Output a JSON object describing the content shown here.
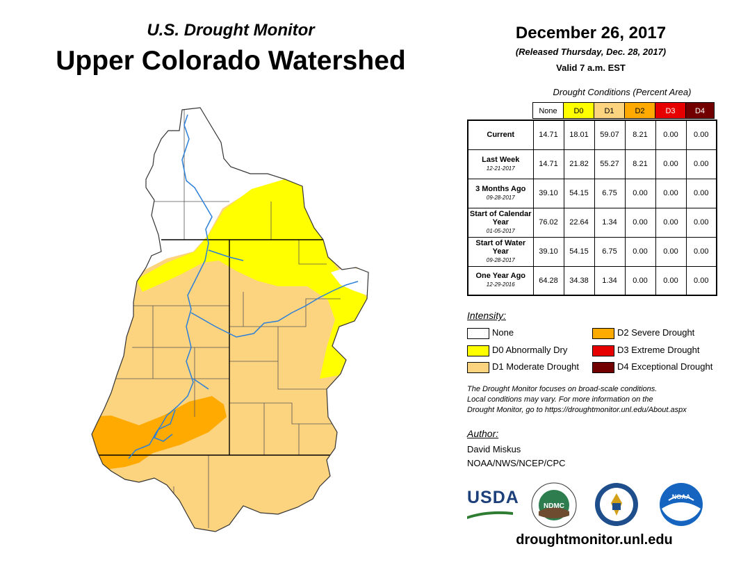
{
  "header": {
    "subtitle": "U.S. Drought Monitor",
    "title": "Upper Colorado Watershed",
    "date": "December 26, 2017",
    "released": "(Released Thursday, Dec. 28, 2017)",
    "valid": "Valid 7 a.m. EST"
  },
  "table": {
    "caption": "Drought Conditions (Percent Area)",
    "columns": [
      "None",
      "D0",
      "D1",
      "D2",
      "D3",
      "D4"
    ],
    "rows": [
      {
        "label": "Current",
        "date": "",
        "values": [
          "14.71",
          "18.01",
          "59.07",
          "8.21",
          "0.00",
          "0.00"
        ]
      },
      {
        "label": "Last Week",
        "date": "12-21-2017",
        "values": [
          "14.71",
          "21.82",
          "55.27",
          "8.21",
          "0.00",
          "0.00"
        ]
      },
      {
        "label": "3 Months Ago",
        "date": "09-28-2017",
        "values": [
          "39.10",
          "54.15",
          "6.75",
          "0.00",
          "0.00",
          "0.00"
        ]
      },
      {
        "label": "Start of Calendar Year",
        "date": "01-05-2017",
        "values": [
          "76.02",
          "22.64",
          "1.34",
          "0.00",
          "0.00",
          "0.00"
        ]
      },
      {
        "label": "Start of Water Year",
        "date": "09-28-2017",
        "values": [
          "39.10",
          "54.15",
          "6.75",
          "0.00",
          "0.00",
          "0.00"
        ]
      },
      {
        "label": "One Year Ago",
        "date": "12-29-2016",
        "values": [
          "64.28",
          "34.38",
          "1.34",
          "0.00",
          "0.00",
          "0.00"
        ]
      }
    ]
  },
  "legend": {
    "title": "Intensity:",
    "items": [
      {
        "label": "None",
        "color": "#ffffff"
      },
      {
        "label": "D0 Abnormally Dry",
        "color": "#ffff00"
      },
      {
        "label": "D1 Moderate Drought",
        "color": "#fcd37f"
      },
      {
        "label": "D2 Severe Drought",
        "color": "#ffaa00"
      },
      {
        "label": "D3 Extreme Drought",
        "color": "#e60000"
      },
      {
        "label": "D4 Exceptional Drought",
        "color": "#730000"
      }
    ]
  },
  "note": {
    "line1": "The Drought Monitor focuses on broad-scale conditions.",
    "line2": "Local conditions may vary. For more information on the",
    "line3": "Drought Monitor, go to https://droughtmonitor.unl.edu/About.aspx"
  },
  "author": {
    "title": "Author:",
    "name": "David Miskus",
    "org": "NOAA/NWS/NCEP/CPC"
  },
  "logos": {
    "usda": "USDA",
    "ndmc": "NDMC",
    "noaa": "NOAA"
  },
  "footer": {
    "site": "droughtmonitor.unl.edu"
  },
  "colors": {
    "none": "#ffffff",
    "d0": "#ffff00",
    "d1": "#fcd37f",
    "d2": "#ffaa00",
    "d3": "#e60000",
    "d4": "#730000",
    "river": "#2b7fd9"
  }
}
